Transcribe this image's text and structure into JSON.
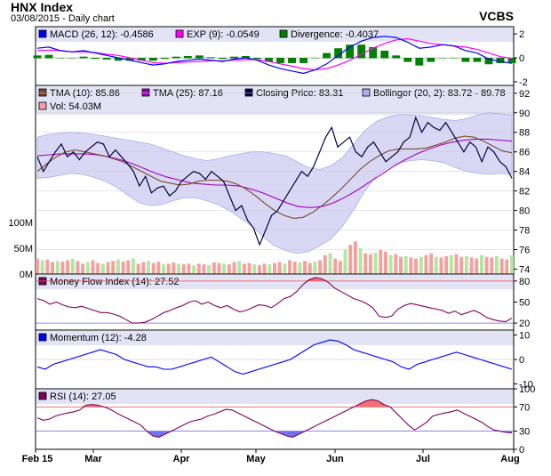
{
  "header": {
    "title": "HNX Index",
    "subtitle": "03/08/2015 - Daily chart",
    "ticker": "VCBS"
  },
  "chart_data": [
    {
      "type": "line",
      "panel": "macd",
      "legend": [
        {
          "text": "MACD (26, 12): -0.4586",
          "color": "#0000ff"
        },
        {
          "text": "EXP (9): -0.0549",
          "color": "#ff00ff"
        },
        {
          "text": "Divergence: -0.4037",
          "color": "#008000"
        }
      ],
      "yticks": [
        "2",
        "0",
        "-2"
      ],
      "ylim": [
        -2.3,
        2.6
      ],
      "series": [
        {
          "name": "MACD (26, 12)",
          "color": "#0000ff",
          "values": [
            0.8,
            0.9,
            0.6,
            0.5,
            0.6,
            0.4,
            0.2,
            0,
            -0.2,
            -0.4,
            -0.6,
            -0.5,
            -0.3,
            -0.2,
            -0.1,
            -0.2,
            -0.3,
            -0.1,
            0,
            -0.2,
            -0.6,
            -0.9,
            -1.1,
            -1.3,
            -1.0,
            -0.5,
            0.2,
            0.9,
            1.4,
            1.7,
            1.8,
            1.7,
            1.3,
            0.8,
            0.9,
            1.1,
            1.0,
            0.6,
            0.4,
            -0.1,
            -0.3,
            -0.46
          ]
        },
        {
          "name": "EXP (9)",
          "color": "#ff00ff",
          "values": [
            0.6,
            0.65,
            0.6,
            0.5,
            0.5,
            0.45,
            0.3,
            0.2,
            0,
            -0.2,
            -0.4,
            -0.45,
            -0.4,
            -0.35,
            -0.3,
            -0.25,
            -0.25,
            -0.2,
            -0.15,
            -0.15,
            -0.3,
            -0.5,
            -0.7,
            -0.9,
            -1.0,
            -0.9,
            -0.6,
            -0.2,
            0.3,
            0.8,
            1.2,
            1.5,
            1.6,
            1.4,
            1.2,
            1.1,
            1.0,
            0.9,
            0.7,
            0.4,
            0.1,
            -0.05
          ]
        },
        {
          "name": "Divergence",
          "color": "#008000",
          "type": "bar",
          "values": [
            0.2,
            0.25,
            0,
            0,
            0.1,
            -0.05,
            -0.1,
            -0.2,
            -0.2,
            -0.2,
            -0.2,
            -0.05,
            0.1,
            0.15,
            0.2,
            0.05,
            -0.05,
            0.1,
            0.15,
            -0.05,
            -0.3,
            -0.4,
            -0.4,
            -0.4,
            0,
            0.4,
            0.8,
            1.1,
            1.1,
            0.9,
            0.6,
            0.2,
            -0.3,
            -0.6,
            -0.3,
            0,
            0,
            -0.3,
            -0.3,
            -0.5,
            -0.4,
            -0.4
          ]
        }
      ]
    },
    {
      "type": "line",
      "panel": "price",
      "legend": [
        {
          "text": "TMA (10): 85.86",
          "color": "#7b4a2a"
        },
        {
          "text": "TMA (25): 87.16",
          "color": "#a000c0"
        },
        {
          "text": "Closing Price: 83.31",
          "color": "#000040"
        },
        {
          "text": "Bollinger (20, 2): 83.72 - 89.78",
          "color": "#aaaaee"
        },
        {
          "text": "Vol: 54.03M",
          "color": "#f4a0a0"
        }
      ],
      "yticks": [
        "92",
        "90",
        "88",
        "86",
        "84",
        "82",
        "80",
        "78",
        "76",
        "74"
      ],
      "ylim": [
        73.5,
        92.8
      ],
      "vol_ticks": [
        "100M",
        "50M",
        "0M"
      ],
      "vol_max": 150,
      "series": [
        {
          "name": "Closing Price",
          "color": "#000040",
          "values": [
            85.5,
            84,
            85,
            86,
            86.8,
            85.5,
            86,
            85.2,
            86,
            86.5,
            87,
            86.8,
            85.5,
            86.2,
            85.5,
            84.8,
            84,
            82.5,
            83.5,
            81.8,
            82.3,
            82.5,
            81.5,
            82,
            83,
            83.5,
            84,
            83.8,
            83.2,
            84,
            83.5,
            83,
            81.5,
            80,
            80.5,
            79,
            78.2,
            76.5,
            78,
            79.5,
            80,
            81,
            82,
            83,
            84,
            83.5,
            84.5,
            86,
            87.5,
            88.5,
            86.5,
            87,
            87.5,
            86,
            85.5,
            86.5,
            87,
            86,
            85,
            85.5,
            86,
            87,
            87.5,
            89.5,
            88,
            89,
            88.5,
            88.2,
            89,
            88,
            87,
            86,
            87,
            86.5,
            85,
            86.5,
            86,
            85,
            84.5,
            83.3
          ]
        },
        {
          "name": "TMA (10)",
          "color": "#7b4a2a",
          "values": [
            84,
            84.8,
            85.5,
            86,
            86.2,
            86,
            85.8,
            85.6,
            85.3,
            85,
            84.5,
            84,
            83.5,
            83,
            82.8,
            82.6,
            82.7,
            83,
            83.1,
            83.1,
            83,
            82.7,
            82.2,
            81.5,
            80.7,
            80,
            79.5,
            79.2,
            79.3,
            79.8,
            80.5,
            81.3,
            82.2,
            83.2,
            84.2,
            85,
            85.6,
            86.1,
            86.3,
            86.3,
            86.3,
            86.4,
            86.7,
            87,
            87.4,
            87.6,
            87.5,
            87.1,
            86.6,
            86.1,
            85.9
          ]
        },
        {
          "name": "TMA (25)",
          "color": "#a000c0",
          "values": [
            85.6,
            85.7,
            85.8,
            85.8,
            85.8,
            85.7,
            85.5,
            85.2,
            84.8,
            84.3,
            83.8,
            83.4,
            83.1,
            82.8,
            82.7,
            82.6,
            82.6,
            82.5,
            82.2,
            81.8,
            81.3,
            80.8,
            80.4,
            80.3,
            80.4,
            80.8,
            81.4,
            82.1,
            82.9,
            83.7,
            84.5,
            85.2,
            85.8,
            86.3,
            86.7,
            87,
            87.2,
            87.3,
            87.3,
            87.2,
            87.1
          ]
        },
        {
          "name": "Bollinger Upper",
          "color": "#aaaaee",
          "values": [
            87.5,
            87.8,
            87.9,
            88,
            87.9,
            87.8,
            87.6,
            87.4,
            87.2,
            87,
            86.8,
            86.4,
            86,
            85.6,
            85.3,
            85.1,
            85.3,
            85.6,
            85.8,
            86,
            86,
            85.8,
            85.6,
            85,
            84.4,
            84.2,
            84.6,
            85.4,
            86.8,
            88.2,
            89.1,
            89.6,
            89.8,
            89.8,
            89.7,
            89.5,
            89.3,
            89.2,
            89.4,
            89.8,
            90,
            89.9,
            89.8
          ]
        },
        {
          "name": "Bollinger Lower",
          "color": "#aaaaee",
          "values": [
            83.3,
            83.4,
            83.6,
            83.8,
            83.7,
            83.4,
            83,
            82.4,
            81.6,
            80.8,
            80.5,
            80.6,
            81,
            81.3,
            81.3,
            81,
            80.6,
            80,
            79.2,
            78.4,
            77.3,
            76.4,
            75.9,
            75.6,
            75.8,
            76.4,
            77.1,
            78.4,
            80.1,
            82,
            83.6,
            84.4,
            84.9,
            85.1,
            85.2,
            85.1,
            84.9,
            84.4,
            84,
            83.8,
            83.7,
            83.8,
            83.7
          ]
        },
        {
          "name": "Vol",
          "type": "bar",
          "values": [
            45,
            40,
            42,
            35,
            38,
            36,
            40,
            45,
            38,
            30,
            35,
            40,
            32,
            30,
            35,
            38,
            42,
            36,
            40,
            45,
            30,
            35,
            38,
            32,
            36,
            28,
            30,
            34,
            30,
            28,
            30,
            25,
            30,
            28,
            26,
            34,
            32,
            30,
            28,
            35,
            38,
            30,
            32,
            28,
            26,
            30,
            28,
            32,
            35,
            30,
            40,
            36,
            34,
            38,
            32,
            36,
            40,
            55,
            60,
            45,
            38,
            70,
            85,
            95,
            75,
            60,
            58,
            62,
            70,
            65,
            55,
            58,
            50,
            52,
            48,
            45,
            50,
            55,
            60,
            50,
            48,
            52,
            55,
            58,
            50,
            52,
            48,
            45,
            55,
            50,
            48,
            52,
            45,
            42,
            54
          ]
        }
      ]
    },
    {
      "type": "line",
      "panel": "mfi",
      "legend": [
        {
          "text": "Money Flow Index (14): 27.52",
          "color": "#800060"
        }
      ],
      "yticks": [
        "80",
        "50",
        "20"
      ],
      "ylim": [
        10,
        90
      ],
      "series": [
        {
          "name": "Money Flow Index (14)",
          "color": "#800060",
          "values": [
            55,
            52,
            47,
            50,
            46,
            43,
            42,
            44,
            41,
            38,
            35,
            35,
            33,
            30,
            25,
            20,
            20,
            21,
            25,
            30,
            35,
            38,
            42,
            45,
            50,
            52,
            47,
            50,
            45,
            42,
            45,
            40,
            36,
            38,
            42,
            46,
            45,
            42,
            48,
            55,
            58,
            65,
            75,
            82,
            85,
            83,
            78,
            70,
            65,
            60,
            55,
            52,
            48,
            42,
            30,
            28,
            30,
            40,
            45,
            48,
            46,
            44,
            42,
            40,
            38,
            34,
            37,
            32,
            35,
            38,
            34,
            28,
            25,
            23,
            22,
            27
          ]
        }
      ]
    },
    {
      "type": "line",
      "panel": "momentum",
      "legend": [
        {
          "text": "Momentum (12): -4.28",
          "color": "#0000ff"
        }
      ],
      "yticks": [
        "10",
        "0",
        "-10"
      ],
      "ylim": [
        -12,
        12
      ],
      "series": [
        {
          "name": "Momentum (12)",
          "color": "#0000ff",
          "values": [
            -3,
            -4,
            -2,
            -1,
            0,
            1,
            2,
            3,
            4,
            3,
            2,
            0,
            -1,
            -2,
            -3,
            -3,
            -4,
            -4,
            -3,
            -2,
            -1,
            0,
            1,
            -1,
            -3,
            -5,
            -6,
            -5,
            -4,
            -3,
            -2,
            -1,
            0,
            2,
            4,
            6,
            7,
            8,
            7.5,
            6,
            4,
            3,
            2,
            1,
            0,
            -1,
            -3,
            -4,
            -2,
            -1,
            0,
            1,
            2,
            3,
            2,
            1,
            0,
            -1,
            -2,
            -3,
            -4
          ]
        }
      ]
    },
    {
      "type": "line",
      "panel": "rsi",
      "legend": [
        {
          "text": "RSI (14): 27.05",
          "color": "#800060"
        }
      ],
      "yticks": [
        "100",
        "70",
        "30",
        "0"
      ],
      "ylim": [
        0,
        100
      ],
      "series": [
        {
          "name": "RSI (14)",
          "color": "#800060",
          "values": [
            52,
            48,
            50,
            55,
            58,
            60,
            62,
            65,
            73,
            74,
            73,
            70,
            66,
            60,
            55,
            50,
            45,
            40,
            30,
            22,
            20,
            25,
            30,
            35,
            40,
            45,
            48,
            50,
            55,
            58,
            62,
            66,
            65,
            60,
            55,
            50,
            45,
            40,
            35,
            30,
            26,
            22,
            20,
            25,
            30,
            35,
            40,
            45,
            50,
            55,
            60,
            65,
            70,
            75,
            80,
            82,
            80,
            74,
            70,
            60,
            50,
            40,
            32,
            38,
            45,
            55,
            58,
            60,
            62,
            65,
            60,
            55,
            50,
            45,
            38,
            32,
            30,
            28,
            27
          ]
        }
      ]
    }
  ],
  "xaxis": [
    "Feb 15",
    "Mar",
    "Apr",
    "May",
    "Jun",
    "Jul",
    "Aug"
  ]
}
